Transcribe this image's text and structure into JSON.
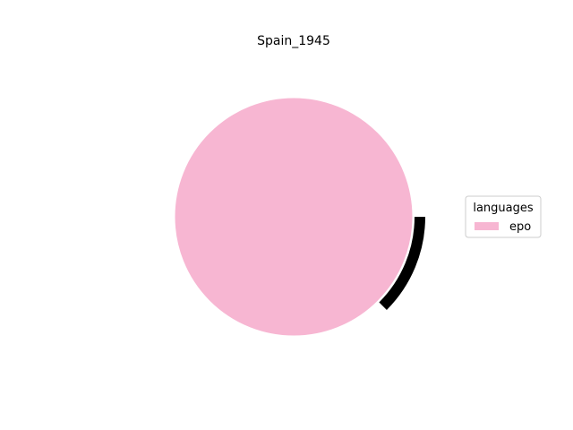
{
  "chart_data": {
    "type": "pie",
    "title": "Spain_1945",
    "legend": {
      "title": "languages",
      "placement": "right"
    },
    "slices": [
      {
        "label": "epo",
        "value": 100,
        "color": "#f7b6d2"
      }
    ],
    "accent_arc_color": "#000000"
  }
}
